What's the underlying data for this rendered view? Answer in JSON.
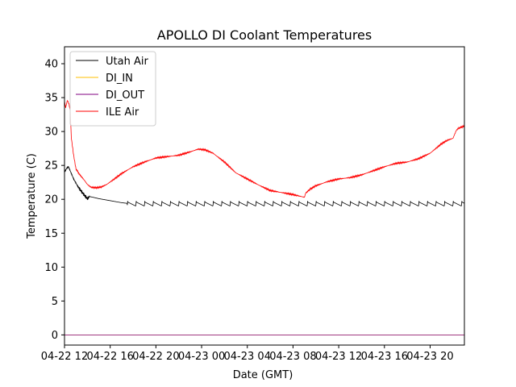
{
  "chart_data": {
    "type": "line",
    "title": "APOLLO DI Coolant Temperatures",
    "xlabel": "Date (GMT)",
    "ylabel": "Temperature (C)",
    "x_unit": "hours since 04-22 12:00 GMT",
    "xlim": [
      0,
      35
    ],
    "ylim": [
      -1.5,
      42.5
    ],
    "x_ticks": [
      {
        "value": 0,
        "label": "04-22 12"
      },
      {
        "value": 4,
        "label": "04-22 16"
      },
      {
        "value": 8,
        "label": "04-22 20"
      },
      {
        "value": 12,
        "label": "04-23 00"
      },
      {
        "value": 16,
        "label": "04-23 04"
      },
      {
        "value": 20,
        "label": "04-23 08"
      },
      {
        "value": 24,
        "label": "04-23 12"
      },
      {
        "value": 28,
        "label": "04-23 16"
      },
      {
        "value": 32,
        "label": "04-23 20"
      }
    ],
    "y_ticks": [
      {
        "value": 0,
        "label": "0"
      },
      {
        "value": 5,
        "label": "5"
      },
      {
        "value": 10,
        "label": "10"
      },
      {
        "value": 15,
        "label": "15"
      },
      {
        "value": 20,
        "label": "20"
      },
      {
        "value": 25,
        "label": "25"
      },
      {
        "value": 30,
        "label": "30"
      },
      {
        "value": 35,
        "label": "35"
      },
      {
        "value": 40,
        "label": "40"
      }
    ],
    "legend_position": "top-left",
    "series": [
      {
        "name": "Utah Air",
        "color": "#000000",
        "x": [
          0,
          0.1,
          0.2,
          0.35,
          0.5,
          0.8,
          1.2,
          1.6,
          1.8,
          2.0,
          2.2,
          2.5,
          3.0,
          4.0,
          5.0,
          6.0,
          7.0,
          8.0,
          10.0,
          12.0,
          13.0,
          14.0,
          16.0,
          18.0,
          20.0,
          22.0,
          24.0,
          26.0,
          28.0,
          30.0,
          32.0,
          34.0,
          35.0
        ],
        "y": [
          24.0,
          24.3,
          24.6,
          24.8,
          24.2,
          23.0,
          21.8,
          20.9,
          20.5,
          20.1,
          20.4,
          20.3,
          20.1,
          19.8,
          19.5,
          19.3,
          19.3,
          19.2,
          19.2,
          19.2,
          19.2,
          19.2,
          19.2,
          19.2,
          19.2,
          19.2,
          19.2,
          19.2,
          19.2,
          19.2,
          19.2,
          19.2,
          19.1
        ],
        "sawtooth": {
          "start": 5.5,
          "end": 35,
          "period": 0.75,
          "amplitude": 0.7,
          "base": 19.15
        }
      },
      {
        "name": "DI_IN",
        "color": "#ffbf00",
        "x": [
          0,
          35
        ],
        "y": [
          0,
          0
        ]
      },
      {
        "name": "DI_OUT",
        "color": "#800080",
        "x": [
          0,
          35
        ],
        "y": [
          0,
          0
        ]
      },
      {
        "name": "ILE Air",
        "color": "#ff0000",
        "x": [
          0,
          0.1,
          0.25,
          0.4,
          0.5,
          0.6,
          0.8,
          1.0,
          1.3,
          1.7,
          2.0,
          2.3,
          2.7,
          3.2,
          3.7,
          4.2,
          5.0,
          6.0,
          7.0,
          8.0,
          9.0,
          10.0,
          11.0,
          11.7,
          12.3,
          13.0,
          14.0,
          15.0,
          16.0,
          17.0,
          18.0,
          19.0,
          20.0,
          20.5,
          21.0,
          21.1,
          21.5,
          22.0,
          23.0,
          24.0,
          25.0,
          26.0,
          27.0,
          28.0,
          29.0,
          30.0,
          31.0,
          32.0,
          32.5,
          33.0,
          33.5,
          34.0,
          34.3,
          34.5,
          35.0
        ],
        "y": [
          34.5,
          33.5,
          34.6,
          34.0,
          33.0,
          29.0,
          26.5,
          24.5,
          23.7,
          22.9,
          22.2,
          21.8,
          21.7,
          21.8,
          22.2,
          22.8,
          23.8,
          24.8,
          25.5,
          26.1,
          26.3,
          26.5,
          27.0,
          27.4,
          27.3,
          26.8,
          25.5,
          23.9,
          23.0,
          22.1,
          21.3,
          21.0,
          20.7,
          20.5,
          20.3,
          20.9,
          21.5,
          22.0,
          22.6,
          23.0,
          23.2,
          23.6,
          24.2,
          24.8,
          25.3,
          25.5,
          26.0,
          26.8,
          27.5,
          28.2,
          28.7,
          29.0,
          30.2,
          30.5,
          30.8
        ]
      }
    ]
  }
}
